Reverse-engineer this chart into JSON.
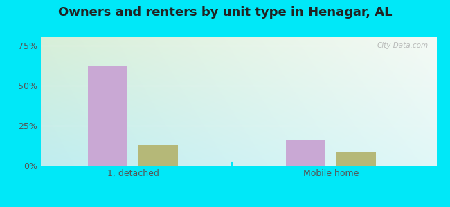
{
  "title": "Owners and renters by unit type in Henagar, AL",
  "categories": [
    "1, detached",
    "Mobile home"
  ],
  "owner_values": [
    62,
    16
  ],
  "renter_values": [
    13,
    8
  ],
  "owner_color": "#c9a8d4",
  "renter_color": "#b5b878",
  "yticks": [
    0,
    25,
    50,
    75
  ],
  "ytick_labels": [
    "0%",
    "25%",
    "50%",
    "75%"
  ],
  "ylim": [
    0,
    80
  ],
  "bar_width": 0.3,
  "bg_color_topleft": "#d8efd8",
  "bg_color_center": "#eef8f0",
  "bg_color_bottomright": "#c0eef0",
  "outer_background": "#00e8f8",
  "title_fontsize": 13,
  "axis_fontsize": 9,
  "watermark": "City-Data.com"
}
